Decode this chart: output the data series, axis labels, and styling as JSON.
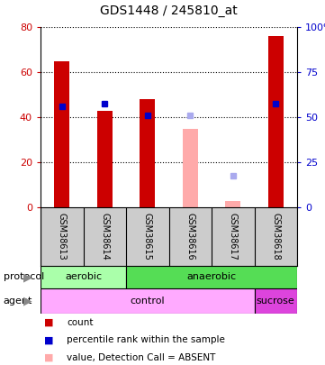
{
  "title": "GDS1448 / 245810_at",
  "samples": [
    "GSM38613",
    "GSM38614",
    "GSM38615",
    "GSM38616",
    "GSM38617",
    "GSM38618"
  ],
  "count_values": [
    65,
    43,
    48,
    null,
    3,
    76
  ],
  "rank_values": [
    45,
    46,
    41,
    null,
    null,
    46
  ],
  "absent_value_values": [
    null,
    null,
    null,
    35,
    3,
    null
  ],
  "absent_rank_values": [
    null,
    null,
    null,
    41,
    14,
    null
  ],
  "ylim_left": [
    0,
    80
  ],
  "ylim_right": [
    0,
    100
  ],
  "yticks_left": [
    0,
    20,
    40,
    60,
    80
  ],
  "ytick_labels_left": [
    "0",
    "20",
    "40",
    "60",
    "80"
  ],
  "yticks_right": [
    0,
    25,
    50,
    75,
    100
  ],
  "ytick_labels_right": [
    "0",
    "25",
    "50",
    "75",
    "100%"
  ],
  "color_count": "#cc0000",
  "color_rank": "#0000cc",
  "color_absent_value": "#ffaaaa",
  "color_absent_rank": "#aaaaee",
  "bar_width": 0.35,
  "protocol_groups": [
    {
      "label": "aerobic",
      "start": 0,
      "end": 2,
      "color": "#aaffaa"
    },
    {
      "label": "anaerobic",
      "start": 2,
      "end": 6,
      "color": "#55dd55"
    }
  ],
  "agent_groups": [
    {
      "label": "control",
      "start": 0,
      "end": 5,
      "color": "#ffaaff"
    },
    {
      "label": "sucrose",
      "start": 5,
      "end": 6,
      "color": "#dd44dd"
    }
  ],
  "legend_items": [
    {
      "label": "count",
      "color": "#cc0000"
    },
    {
      "label": "percentile rank within the sample",
      "color": "#0000cc"
    },
    {
      "label": "value, Detection Call = ABSENT",
      "color": "#ffaaaa"
    },
    {
      "label": "rank, Detection Call = ABSENT",
      "color": "#aaaaee"
    }
  ],
  "bg_color": "#ffffff"
}
